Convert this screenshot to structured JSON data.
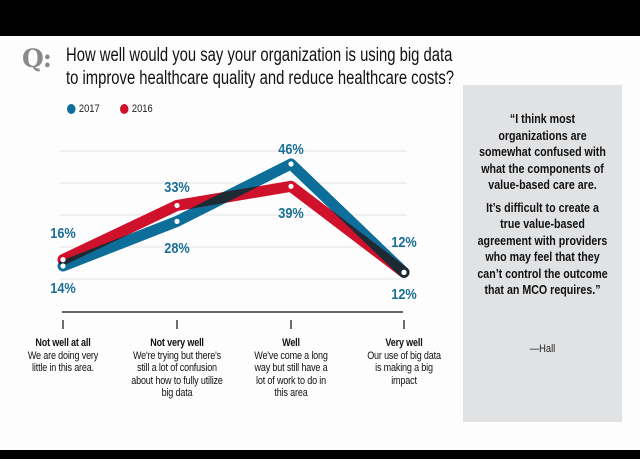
{
  "question": {
    "prefix": "Q:",
    "line1": "How well would you say your organization is using big data",
    "line2": "to improve healthcare quality and reduce healthcare costs?"
  },
  "colors": {
    "series_2017": "#0d6e9a",
    "series_2016": "#d0112b",
    "overlap": "#1c2a33",
    "label": "#1b6f96",
    "quote_bg": "#e1e2e4"
  },
  "chart_data": {
    "type": "line",
    "title": "How well would you say your organization is using big data to improve healthcare quality and reduce healthcare costs?",
    "xlabel": "",
    "ylabel": "",
    "ylim": [
      0,
      55
    ],
    "grid": true,
    "legend_position": "top-left",
    "categories": [
      "Not well at all",
      "Not very well",
      "Well",
      "Very well"
    ],
    "category_descriptions": [
      "We are doing very little in this area.",
      "We're trying but there's still a lot of confusion about how to fully utilize big data",
      "We've come a long way but still have a lot of work to do in this area",
      "Our use of big data is making a big impact"
    ],
    "series": [
      {
        "name": "2017",
        "values": [
          14,
          28,
          46,
          12
        ],
        "labels": [
          "14%",
          "28%",
          "46%",
          "12%"
        ]
      },
      {
        "name": "2016",
        "values": [
          16,
          33,
          39,
          12
        ],
        "labels": [
          "16%",
          "33%",
          "39%",
          "12%"
        ]
      }
    ]
  },
  "legend": [
    {
      "label": "2017"
    },
    {
      "label": "2016"
    }
  ],
  "categories_display": [
    {
      "title": "Not well at all",
      "lines": [
        "We are doing very",
        "little in this area."
      ]
    },
    {
      "title": "Not very well",
      "lines": [
        "We're trying but there's",
        "still a lot of confusion",
        "about how to fully utilize",
        "big data"
      ]
    },
    {
      "title": "Well",
      "lines": [
        "We've come a long",
        "way but still have a",
        "lot of work to do in",
        "this area"
      ]
    },
    {
      "title": "Very well",
      "lines": [
        "Our use of big data",
        "is making a big",
        "impact"
      ]
    }
  ],
  "quote": {
    "paragraph1": "“I think most organizations are somewhat confused with what the components of value-based care are.",
    "paragraph2": "It’s difficult to create a true value-based agreement with providers who may feel that they can’t control the outcome that an MCO requires.”",
    "attribution": "—Hall"
  }
}
